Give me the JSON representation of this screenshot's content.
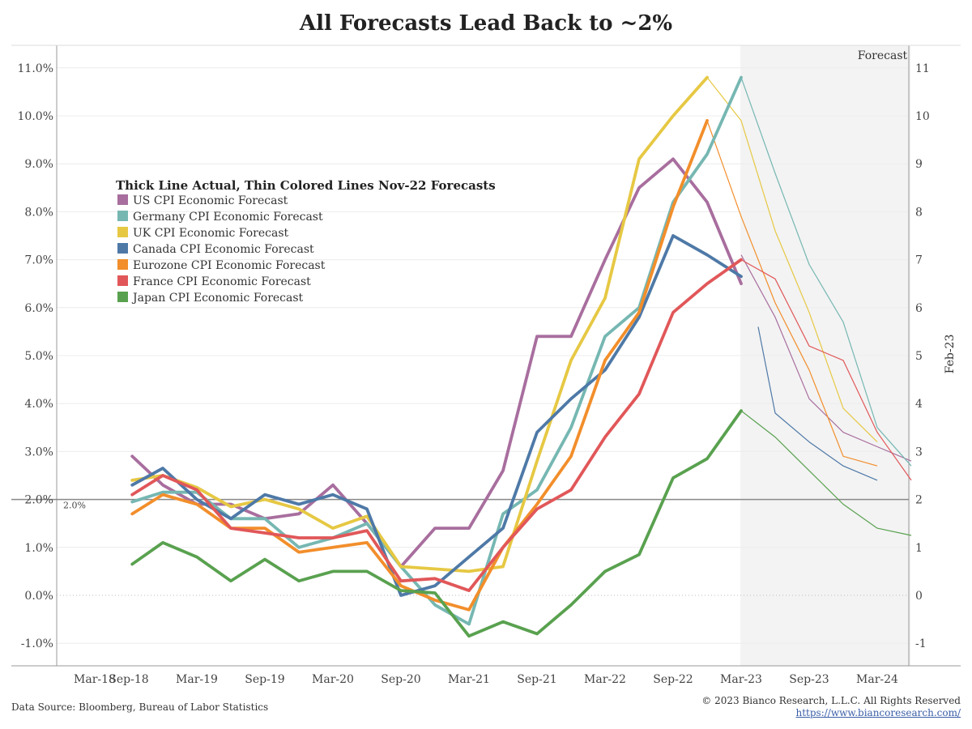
{
  "title": "All Forecasts Lead Back to ~2%",
  "source": "Data Source: Bloomberg, Bureau of Labor Statistics",
  "copyright": "© 2023 Bianco Research, L.L.C. All Rights Reserved",
  "website": "https://www.biancoresearch.com/",
  "chart_data": {
    "type": "line",
    "forecast_label": "Forecast",
    "right_axis_label": "Feb-23",
    "reference_label": "2.0%",
    "reference_value": 2.0,
    "legend_title": "Thick Line Actual, Thin Colored Lines Nov-22 Forecasts",
    "grid": true,
    "legend_placement": "top-left",
    "ylim": [
      -1.5,
      11.5
    ],
    "left_ticks": [
      -1,
      0,
      1,
      2,
      3,
      4,
      5,
      6,
      7,
      8,
      9,
      10,
      11
    ],
    "left_tick_labels": [
      "-1.0%",
      "0.0%",
      "1.0%",
      "2.0%",
      "3.0%",
      "4.0%",
      "5.0%",
      "6.0%",
      "7.0%",
      "8.0%",
      "9.0%",
      "10.0%",
      "11.0%"
    ],
    "right_tick_labels": [
      "-1",
      "0",
      "1",
      "2",
      "3",
      "4",
      "5",
      "6",
      "7",
      "8",
      "9",
      "10",
      "11"
    ],
    "x_ticks": [
      {
        "t": 0,
        "label": "Mar-18"
      },
      {
        "t": 1,
        "label": "Sep-18"
      },
      {
        "t": 3,
        "label": "Mar-19"
      },
      {
        "t": 5,
        "label": "Sep-19"
      },
      {
        "t": 7,
        "label": "Mar-20"
      },
      {
        "t": 9,
        "label": "Sep-20"
      },
      {
        "t": 11,
        "label": "Mar-21"
      },
      {
        "t": 13,
        "label": "Sep-21"
      },
      {
        "t": 15,
        "label": "Mar-22"
      },
      {
        "t": 17,
        "label": "Sep-22"
      },
      {
        "t": 19,
        "label": "Mar-23"
      },
      {
        "t": 21,
        "label": "Sep-23"
      },
      {
        "t": 23,
        "label": "Mar-24"
      }
    ],
    "x_range": [
      -0.95,
      24.1
    ],
    "forecast_start": 18.98,
    "forecast_end": 23.98,
    "series": [
      {
        "name": "US CPI Economic Forecast",
        "color": "#a86e9e",
        "actual": [
          [
            1.1,
            2.9
          ],
          [
            2,
            2.3
          ],
          [
            3,
            1.9
          ],
          [
            4,
            1.9
          ],
          [
            5,
            1.6
          ],
          [
            6,
            1.7
          ],
          [
            7,
            2.3
          ],
          [
            8,
            1.5
          ],
          [
            9,
            0.6
          ],
          [
            10,
            1.4
          ],
          [
            11,
            1.4
          ],
          [
            12,
            2.6
          ],
          [
            13,
            5.4
          ],
          [
            14,
            5.4
          ],
          [
            15,
            7
          ],
          [
            16,
            8.5
          ],
          [
            17,
            9.1
          ],
          [
            18,
            8.2
          ],
          [
            19,
            6.5
          ]
        ],
        "forecast": [
          [
            19,
            7.1
          ],
          [
            20,
            5.8
          ],
          [
            21,
            4.1
          ],
          [
            22,
            3.4
          ],
          [
            23,
            3.1
          ],
          [
            24,
            2.8
          ]
        ]
      },
      {
        "name": "Germany CPI Economic Forecast",
        "color": "#76b7b2",
        "actual": [
          [
            1.1,
            1.95
          ],
          [
            2,
            2.15
          ],
          [
            3,
            2.15
          ],
          [
            4,
            1.6
          ],
          [
            5,
            1.6
          ],
          [
            6,
            1
          ],
          [
            7,
            1.2
          ],
          [
            8,
            1.5
          ],
          [
            9,
            0.6
          ],
          [
            10,
            -0.2
          ],
          [
            11,
            -0.6
          ],
          [
            12,
            1.7
          ],
          [
            13,
            2.2
          ],
          [
            14,
            3.5
          ],
          [
            15,
            5.4
          ],
          [
            16,
            6
          ],
          [
            17,
            8.2
          ],
          [
            18,
            9.2
          ],
          [
            19,
            10.8
          ]
        ],
        "forecast": [
          [
            19,
            10.8
          ],
          [
            20,
            8.8
          ],
          [
            21,
            6.9
          ],
          [
            22,
            5.7
          ],
          [
            23,
            3.5
          ],
          [
            24,
            2.7
          ]
        ]
      },
      {
        "name": "UK CPI Economic Forecast",
        "color": "#e6c843",
        "actual": [
          [
            1.1,
            2.4
          ],
          [
            2,
            2.5
          ],
          [
            3,
            2.25
          ],
          [
            4,
            1.85
          ],
          [
            5,
            2
          ],
          [
            6,
            1.8
          ],
          [
            7,
            1.4
          ],
          [
            8,
            1.65
          ],
          [
            9,
            0.6
          ],
          [
            10,
            0.55
          ],
          [
            11,
            0.5
          ],
          [
            12,
            0.6
          ],
          [
            13,
            2.8
          ],
          [
            14,
            4.9
          ],
          [
            15,
            6.2
          ],
          [
            16,
            9.1
          ],
          [
            17,
            10
          ],
          [
            18,
            10.8
          ]
        ],
        "forecast": [
          [
            18,
            10.8
          ],
          [
            19,
            9.9
          ],
          [
            20,
            7.6
          ],
          [
            21,
            5.9
          ],
          [
            22,
            3.9
          ],
          [
            23,
            3.2
          ]
        ]
      },
      {
        "name": "Canada CPI Economic Forecast",
        "color": "#4e79a7",
        "actual": [
          [
            1.1,
            2.3
          ],
          [
            2,
            2.65
          ],
          [
            3,
            2.0
          ],
          [
            4,
            1.6
          ],
          [
            5,
            2.1
          ],
          [
            6,
            1.9
          ],
          [
            7,
            2.1
          ],
          [
            8,
            1.8
          ],
          [
            9,
            0
          ],
          [
            10,
            0.2
          ],
          [
            11,
            0.8
          ],
          [
            12,
            1.4
          ],
          [
            13,
            3.4
          ],
          [
            14,
            4.1
          ],
          [
            15,
            4.7
          ],
          [
            16,
            5.8
          ],
          [
            17,
            7.5
          ],
          [
            18,
            7.1
          ],
          [
            19,
            6.65
          ]
        ],
        "forecast": [
          [
            19.5,
            5.6
          ],
          [
            20,
            3.8
          ],
          [
            21,
            3.2
          ],
          [
            22,
            2.7
          ],
          [
            23,
            2.4
          ]
        ]
      },
      {
        "name": "Eurozone CPI Economic Forecast",
        "color": "#f28e2b",
        "actual": [
          [
            1.1,
            1.7
          ],
          [
            2,
            2.1
          ],
          [
            3,
            1.9
          ],
          [
            4,
            1.4
          ],
          [
            5,
            1.4
          ],
          [
            6,
            0.9
          ],
          [
            7,
            1
          ],
          [
            8,
            1.1
          ],
          [
            9,
            0.2
          ],
          [
            10,
            -0.1
          ],
          [
            11,
            -0.3
          ],
          [
            12,
            1
          ],
          [
            13,
            1.9
          ],
          [
            14,
            2.9
          ],
          [
            15,
            4.9
          ],
          [
            16,
            5.9
          ],
          [
            17,
            8.1
          ],
          [
            18,
            9.9
          ]
        ],
        "forecast": [
          [
            18,
            9.9
          ],
          [
            19,
            7.9
          ],
          [
            20,
            6.1
          ],
          [
            21,
            4.7
          ],
          [
            22,
            2.9
          ],
          [
            23,
            2.7
          ]
        ]
      },
      {
        "name": "France CPI Economic Forecast",
        "color": "#e15759",
        "actual": [
          [
            1.1,
            2.1
          ],
          [
            2,
            2.5
          ],
          [
            3,
            2.2
          ],
          [
            4,
            1.4
          ],
          [
            5,
            1.3
          ],
          [
            6,
            1.2
          ],
          [
            7,
            1.2
          ],
          [
            8,
            1.35
          ],
          [
            9,
            0.3
          ],
          [
            10,
            0.35
          ],
          [
            11,
            0.1
          ],
          [
            12,
            1
          ],
          [
            13,
            1.8
          ],
          [
            14,
            2.2
          ],
          [
            15,
            3.3
          ],
          [
            16,
            4.2
          ],
          [
            17,
            5.9
          ],
          [
            18,
            6.5
          ],
          [
            19,
            7.0
          ]
        ],
        "forecast": [
          [
            19,
            7.0
          ],
          [
            20,
            6.6
          ],
          [
            21,
            5.2
          ],
          [
            22,
            4.9
          ],
          [
            23,
            3.4
          ],
          [
            24,
            2.4
          ]
        ]
      },
      {
        "name": "Japan CPI Economic Forecast",
        "color": "#59a14f",
        "actual": [
          [
            1.1,
            0.65
          ],
          [
            2,
            1.1
          ],
          [
            3,
            0.8
          ],
          [
            4,
            0.3
          ],
          [
            5,
            0.75
          ],
          [
            6,
            0.3
          ],
          [
            7,
            0.5
          ],
          [
            8,
            0.5
          ],
          [
            9,
            0.1
          ],
          [
            10,
            0.05
          ],
          [
            11,
            -0.85
          ],
          [
            12,
            -0.55
          ],
          [
            13,
            -0.8
          ],
          [
            14,
            -0.2
          ],
          [
            15,
            0.5
          ],
          [
            16,
            0.85
          ],
          [
            17,
            2.45
          ],
          [
            18,
            2.85
          ],
          [
            19,
            3.85
          ]
        ],
        "forecast": [
          [
            19,
            3.85
          ],
          [
            20,
            3.3
          ],
          [
            21,
            2.6
          ],
          [
            22,
            1.9
          ],
          [
            23,
            1.4
          ],
          [
            24,
            1.25
          ]
        ]
      }
    ]
  }
}
